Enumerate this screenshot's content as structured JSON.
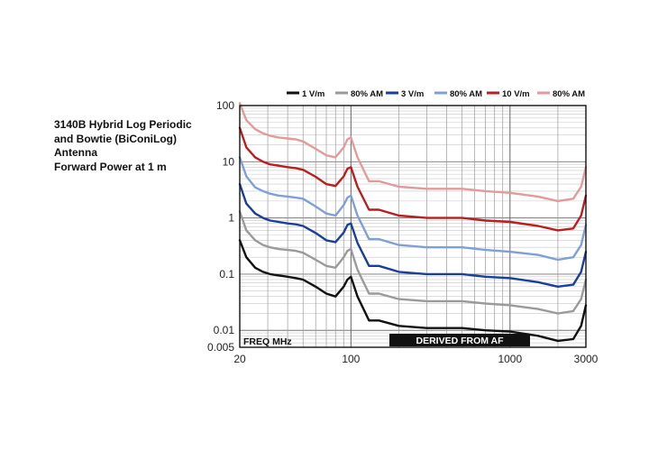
{
  "chart_data": {
    "type": "line",
    "title_lines": [
      "3140B Hybrid Log Periodic",
      "and Bowtie (BiConiLog)",
      "Antenna",
      "Forward Power at 1 m"
    ],
    "x_scale": "log",
    "y_scale": "log",
    "xlim": [
      20,
      3000
    ],
    "ylim": [
      0.005,
      100
    ],
    "x_tick_labels": [
      {
        "value": 20,
        "label": "20"
      },
      {
        "value": 100,
        "label": "100"
      },
      {
        "value": 1000,
        "label": "1000"
      },
      {
        "value": 3000,
        "label": "3000"
      }
    ],
    "y_tick_labels": [
      {
        "value": 100,
        "label": "100"
      },
      {
        "value": 10,
        "label": "10"
      },
      {
        "value": 1,
        "label": "1"
      },
      {
        "value": 0.1,
        "label": "0.1"
      },
      {
        "value": 0.01,
        "label": "0.01"
      },
      {
        "value": 0.005,
        "label": "0.005"
      }
    ],
    "grid": true,
    "legend_position": "top",
    "annotations": {
      "x_axis_tag": "FREQ MHz",
      "source_tag": "DERIVED FROM AF"
    },
    "x": [
      20,
      22,
      25,
      28,
      31,
      35,
      40,
      45,
      50,
      60,
      70,
      80,
      90,
      95,
      100,
      110,
      130,
      150,
      200,
      300,
      500,
      700,
      1000,
      1500,
      2000,
      2500,
      2800,
      3000
    ],
    "series": [
      {
        "name": "1 V/m",
        "color": "#111111",
        "values": [
          0.4,
          0.2,
          0.13,
          0.11,
          0.1,
          0.095,
          0.09,
          0.085,
          0.08,
          0.06,
          0.045,
          0.04,
          0.06,
          0.08,
          0.09,
          0.04,
          0.015,
          0.015,
          0.012,
          0.011,
          0.011,
          0.01,
          0.0095,
          0.008,
          0.0065,
          0.007,
          0.012,
          0.028
        ]
      },
      {
        "name": "80% AM",
        "color": "#9a9a9a",
        "values": [
          1.3,
          0.6,
          0.4,
          0.33,
          0.3,
          0.28,
          0.27,
          0.26,
          0.24,
          0.18,
          0.14,
          0.13,
          0.2,
          0.26,
          0.28,
          0.12,
          0.045,
          0.045,
          0.036,
          0.033,
          0.033,
          0.03,
          0.028,
          0.024,
          0.02,
          0.022,
          0.036,
          0.08
        ]
      },
      {
        "name": "3 V/m",
        "color": "#1a3f9a",
        "values": [
          4,
          1.8,
          1.2,
          1.0,
          0.9,
          0.85,
          0.8,
          0.77,
          0.72,
          0.54,
          0.4,
          0.37,
          0.55,
          0.75,
          0.8,
          0.36,
          0.14,
          0.14,
          0.11,
          0.1,
          0.1,
          0.09,
          0.085,
          0.072,
          0.06,
          0.065,
          0.11,
          0.25
        ]
      },
      {
        "name": "80% AM",
        "color": "#7f9fd8",
        "values": [
          12,
          5.5,
          3.5,
          3.0,
          2.7,
          2.5,
          2.4,
          2.3,
          2.2,
          1.6,
          1.2,
          1.1,
          1.7,
          2.3,
          2.5,
          1.1,
          0.42,
          0.42,
          0.33,
          0.3,
          0.3,
          0.27,
          0.25,
          0.22,
          0.18,
          0.2,
          0.33,
          0.75
        ]
      },
      {
        "name": "10 V/m",
        "color": "#b81f1f",
        "values": [
          40,
          18,
          12,
          10,
          9,
          8.5,
          8,
          7.7,
          7.2,
          5.4,
          4.0,
          3.7,
          5.5,
          7.5,
          8,
          3.6,
          1.4,
          1.4,
          1.1,
          1.0,
          1.0,
          0.9,
          0.85,
          0.72,
          0.6,
          0.65,
          1.1,
          2.5
        ]
      },
      {
        "name": "80% AM",
        "color": "#e39a9a",
        "values": [
          110,
          55,
          38,
          32,
          29,
          27,
          26,
          25,
          23,
          17,
          13,
          12,
          18,
          25,
          27,
          12,
          4.5,
          4.5,
          3.6,
          3.3,
          3.3,
          3.0,
          2.8,
          2.4,
          2.0,
          2.2,
          3.6,
          8
        ]
      }
    ]
  }
}
